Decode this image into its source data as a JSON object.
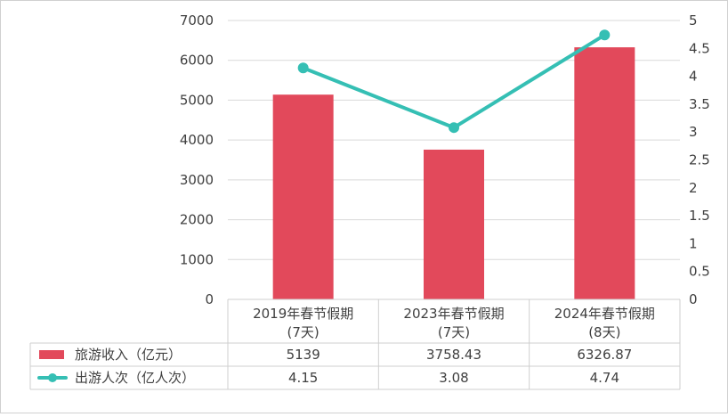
{
  "chart_data": {
    "type": "bar+line",
    "categories": [
      [
        "2019年春节假期",
        "(7天)"
      ],
      [
        "2023年春节假期",
        "(7天)"
      ],
      [
        "2024年春节假期",
        "(8天)"
      ]
    ],
    "series": [
      {
        "name": "旅游收入（亿元）",
        "type": "bar",
        "axis": "left",
        "color": "#e2495b",
        "values": [
          5139,
          3758.43,
          6326.87
        ],
        "labels": [
          "5139",
          "3758.43",
          "6326.87"
        ]
      },
      {
        "name": "出游人次（亿人次）",
        "type": "line",
        "axis": "right",
        "color": "#35bfb4",
        "values": [
          4.15,
          3.08,
          4.74
        ],
        "labels": [
          "4.15",
          "3.08",
          "4.74"
        ]
      }
    ],
    "y_left": {
      "min": 0,
      "max": 7000,
      "ticks": [
        0,
        1000,
        2000,
        3000,
        4000,
        5000,
        6000,
        7000
      ],
      "tick_labels": [
        "0",
        "1000",
        "2000",
        "3000",
        "4000",
        "5000",
        "6000",
        "7000"
      ]
    },
    "y_right": {
      "min": 0,
      "max": 5,
      "ticks": [
        0,
        0.5,
        1,
        1.5,
        2,
        2.5,
        3,
        3.5,
        4,
        4.5,
        5
      ],
      "tick_labels": [
        "0",
        "0.5",
        "1",
        "1.5",
        "2",
        "2.5",
        "3",
        "3.5",
        "4",
        "4.5",
        "5"
      ]
    },
    "grid": true,
    "legend": "data-table",
    "colors": {
      "grid": "#d9d9d9",
      "text": "#404040",
      "border": "#cfcfcf"
    }
  }
}
